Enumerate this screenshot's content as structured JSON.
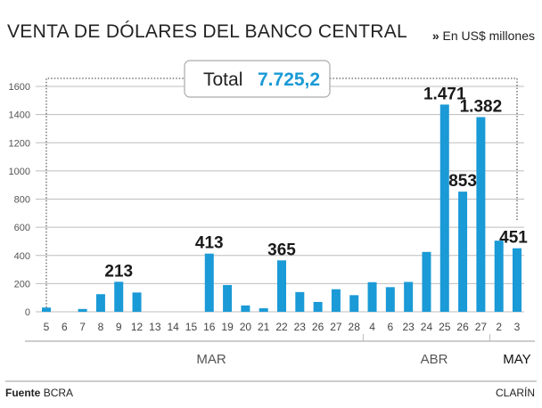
{
  "header": {
    "title": "VENTA DE DÓLARES DEL BANCO CENTRAL",
    "unit_marker": "»",
    "unit": "En US$ millones"
  },
  "total": {
    "label": "Total",
    "value": "7.725,2"
  },
  "footer": {
    "source_label": "Fuente",
    "source": "BCRA",
    "brand": "CLARÍN"
  },
  "colors": {
    "bar": "#1a9ad6",
    "total_value": "#1a9ad6",
    "text": "#222222"
  },
  "chart_data": {
    "type": "bar",
    "title": "VENTA DE DÓLARES DEL BANCO CENTRAL",
    "ylabel": "En US$ millones",
    "ylim": [
      0,
      1600
    ],
    "yticks": [
      "0",
      "200",
      "400",
      "600",
      "800",
      "1000",
      "1200",
      "1400",
      "1600"
    ],
    "grid": true,
    "categories": [
      "5",
      "6",
      "7",
      "8",
      "9",
      "12",
      "13",
      "14",
      "15",
      "16",
      "19",
      "20",
      "21",
      "22",
      "23",
      "26",
      "27",
      "28",
      "4",
      "6",
      "23",
      "24",
      "25",
      "26",
      "27",
      "2",
      "3"
    ],
    "months": [
      {
        "label": "MAR",
        "start": 0,
        "end": 17
      },
      {
        "label": "ABR",
        "start": 18,
        "end": 24
      },
      {
        "label": "MAY",
        "start": 25,
        "end": 26
      }
    ],
    "values": [
      30,
      0,
      20,
      125,
      213,
      137,
      0,
      0,
      0,
      413,
      190,
      45,
      25,
      365,
      140,
      70,
      160,
      118,
      210,
      175,
      212,
      425,
      1471,
      853,
      1382,
      505,
      451
    ],
    "data_labels": {
      "4": "213",
      "9": "413",
      "13": "365",
      "22": "1.471",
      "23": "853",
      "24": "1.382",
      "26": "451"
    }
  }
}
